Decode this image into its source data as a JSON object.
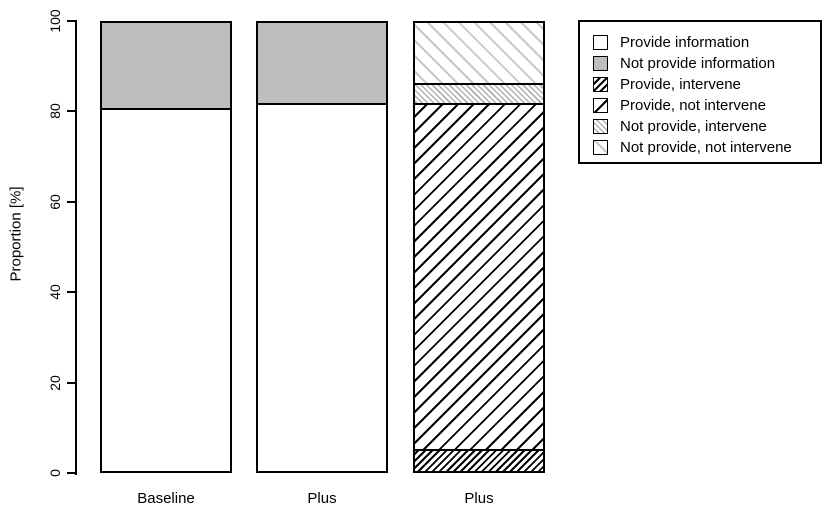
{
  "figure": {
    "background": "#ffffff"
  },
  "chart_data": {
    "type": "bar",
    "stacked": true,
    "title": "",
    "xlabel": "",
    "ylabel": "Proportion [%]",
    "ylim": [
      0,
      100
    ],
    "yticks": [
      0,
      20,
      40,
      60,
      80,
      100
    ],
    "categories": [
      "Baseline",
      "Plus",
      "Plus"
    ],
    "bars": [
      {
        "category": "Baseline",
        "segments": [
          {
            "name": "Provide information",
            "value": 80.5
          },
          {
            "name": "Not provide information",
            "value": 19.5
          }
        ]
      },
      {
        "category": "Plus",
        "segments": [
          {
            "name": "Provide information",
            "value": 81.5
          },
          {
            "name": "Not provide information",
            "value": 18.5
          }
        ]
      },
      {
        "category": "Plus",
        "segments": [
          {
            "name": "Provide, intervene",
            "value": 5
          },
          {
            "name": "Provide, not intervene",
            "value": 76.5
          },
          {
            "name": "Not provide, intervene",
            "value": 4.5
          },
          {
            "name": "Not provide, not intervene",
            "value": 14
          }
        ]
      }
    ],
    "legend": {
      "position": "top-right",
      "entries": [
        "Provide information",
        "Not provide information",
        "Provide, intervene",
        "Provide, not intervene",
        "Not provide, intervene",
        "Not provide, not intervene"
      ]
    },
    "styles": {
      "Provide information": {
        "type": "solid",
        "color": "#ffffff"
      },
      "Not provide information": {
        "type": "solid",
        "color": "#bebebe"
      },
      "Provide, intervene": {
        "type": "hatch",
        "dir": "fwd",
        "color": "#000000",
        "period": 5,
        "line": 2
      },
      "Provide, not intervene": {
        "type": "hatch",
        "dir": "fwd",
        "color": "#000000",
        "period": 11,
        "line": 2
      },
      "Not provide, intervene": {
        "type": "hatch",
        "dir": "back",
        "color": "#b0b0b0",
        "period": 4,
        "line": 1.5
      },
      "Not provide, not intervene": {
        "type": "hatch",
        "dir": "back",
        "color": "#c8c8c8",
        "period": 11,
        "line": 2
      }
    },
    "grid": false
  }
}
